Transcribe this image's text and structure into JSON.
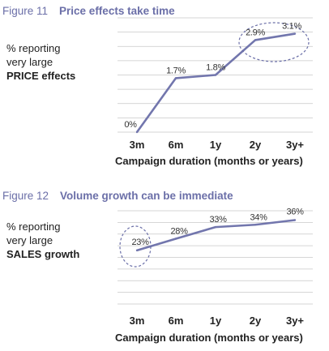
{
  "chart_data": [
    {
      "type": "line",
      "figure_label": "Figure 11",
      "title": "Price effects take time",
      "ylabel_lines": [
        "% reporting",
        "very large",
        "PRICE effects"
      ],
      "xlabel": "Campaign duration (months or years)",
      "categories": [
        "3m",
        "6m",
        "1y",
        "2y",
        "3y+"
      ],
      "values": [
        0,
        1.7,
        1.8,
        2.9,
        3.1
      ],
      "data_labels": [
        "0%",
        "1.7%",
        "1.8%",
        "2.9%",
        "3.1%"
      ],
      "ylim": [
        0,
        3.6
      ],
      "grid": true,
      "highlight": "ellipse around 2y and 3y+",
      "line_color": "#7276ad",
      "accent_color": "#6b6fa8"
    },
    {
      "type": "line",
      "figure_label": "Figure 12",
      "title": "Volume growth can be immediate",
      "ylabel_lines": [
        "% reporting",
        "very large",
        "SALES growth"
      ],
      "xlabel": "Campaign duration (months or years)",
      "categories": [
        "3m",
        "6m",
        "1y",
        "2y",
        "3y+"
      ],
      "values": [
        23,
        28,
        33,
        34,
        36
      ],
      "data_labels": [
        "23%",
        "28%",
        "33%",
        "34%",
        "36%"
      ],
      "ylim": [
        0,
        40
      ],
      "grid": true,
      "highlight": "ellipse around 3m",
      "line_color": "#7276ad",
      "accent_color": "#6b6fa8"
    }
  ]
}
